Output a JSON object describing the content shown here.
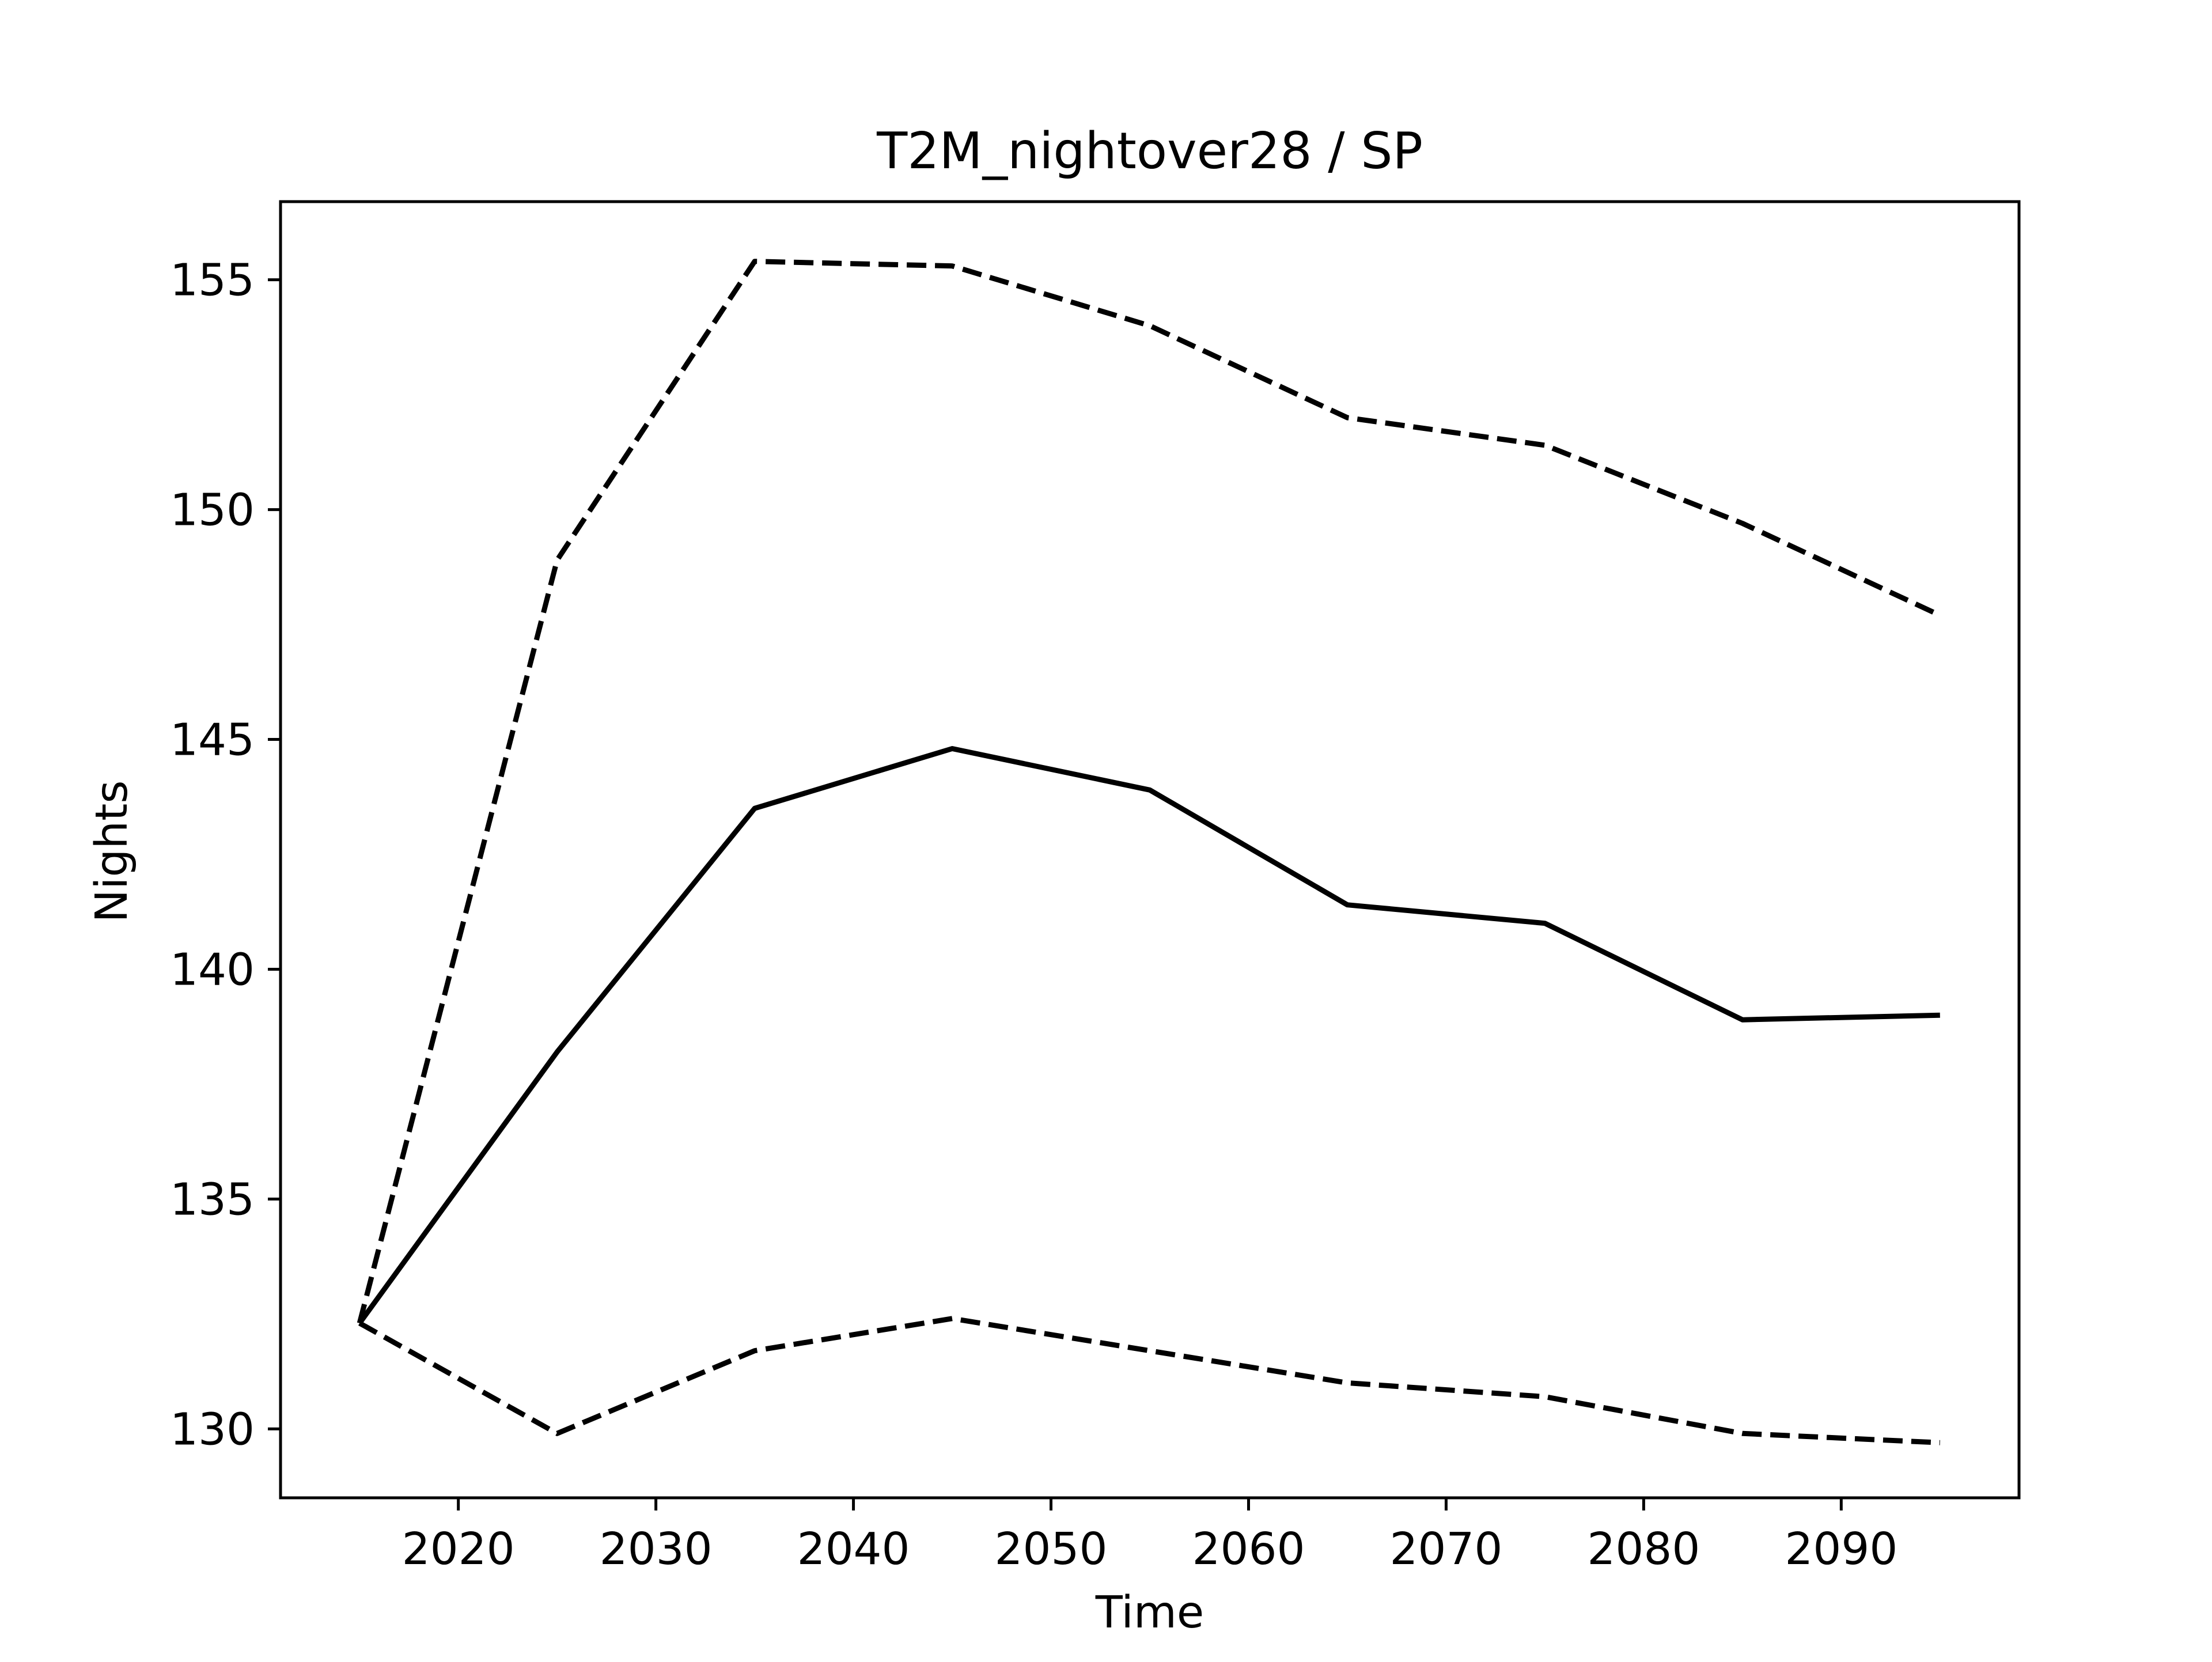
{
  "chart_data": {
    "type": "line",
    "title": "T2M_nightover28 / SP",
    "xlabel": "Time",
    "ylabel": "Nights",
    "xlim": [
      2011,
      2099
    ],
    "ylim": [
      128.5,
      156.7
    ],
    "xticks": [
      2020,
      2030,
      2040,
      2050,
      2060,
      2070,
      2080,
      2090
    ],
    "yticks": [
      130,
      135,
      140,
      145,
      150,
      155
    ],
    "grid": false,
    "legend": "none",
    "x": [
      2015,
      2025,
      2035,
      2045,
      2055,
      2065,
      2075,
      2085,
      2095
    ],
    "series": [
      {
        "style": "solid",
        "color": "#000000",
        "values": [
          132.3,
          138.2,
          143.5,
          144.8,
          143.9,
          141.4,
          141.0,
          138.9,
          139.0
        ]
      },
      {
        "style": "dashed",
        "color": "#000000",
        "values": [
          132.3,
          148.9,
          155.4,
          155.3,
          154.0,
          152.0,
          151.4,
          149.7,
          147.7
        ]
      },
      {
        "style": "dashed",
        "color": "#000000",
        "values": [
          132.3,
          129.9,
          131.7,
          132.4,
          131.7,
          131.0,
          130.7,
          129.9,
          129.7
        ]
      }
    ]
  }
}
